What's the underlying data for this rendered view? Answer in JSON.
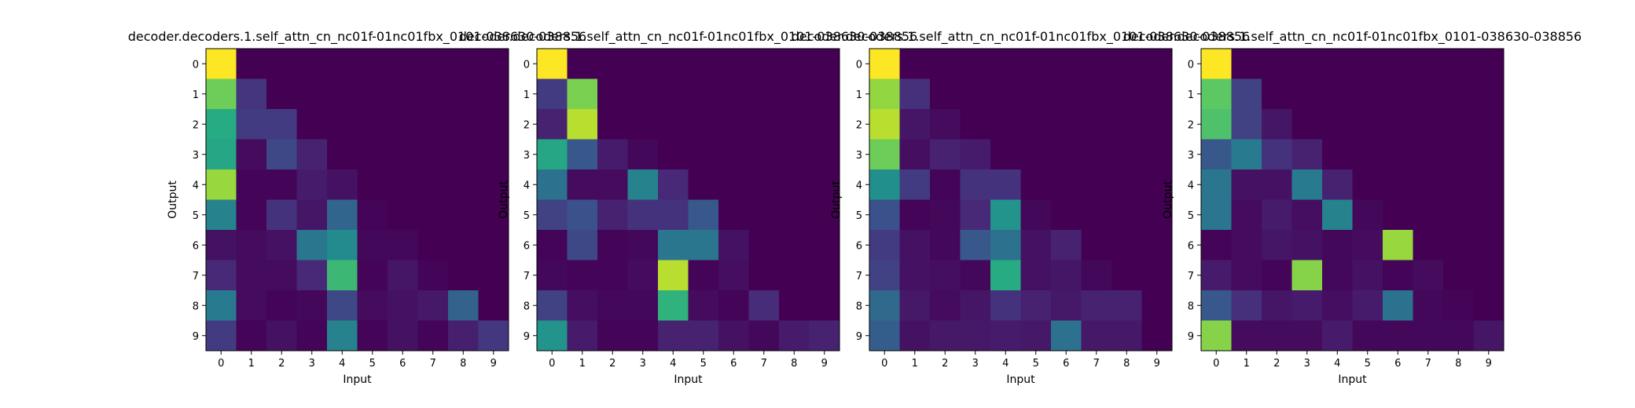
{
  "chart_data": [
    {
      "type": "heatmap",
      "title": "decoder.decoders.1.self_attn_cn_nc01f-01nc01fbx_0101-038630-038856",
      "xlabel": "Input",
      "ylabel": "Output",
      "x_ticks": [
        "0",
        "1",
        "2",
        "3",
        "4",
        "5",
        "6",
        "7",
        "8",
        "9"
      ],
      "y_ticks": [
        "0",
        "1",
        "2",
        "3",
        "4",
        "5",
        "6",
        "7",
        "8",
        "9"
      ],
      "colormap": "viridis",
      "vmin": 0.0,
      "vmax": 1.0,
      "values": [
        [
          1.0,
          0.0,
          0.0,
          0.0,
          0.0,
          0.0,
          0.0,
          0.0,
          0.0,
          0.0
        ],
        [
          0.78,
          0.16,
          0.0,
          0.0,
          0.0,
          0.0,
          0.0,
          0.0,
          0.0,
          0.0
        ],
        [
          0.62,
          0.18,
          0.18,
          0.0,
          0.0,
          0.0,
          0.0,
          0.0,
          0.0,
          0.0
        ],
        [
          0.6,
          0.03,
          0.22,
          0.1,
          0.0,
          0.0,
          0.0,
          0.0,
          0.0,
          0.0
        ],
        [
          0.85,
          0.01,
          0.01,
          0.08,
          0.05,
          0.0,
          0.0,
          0.0,
          0.0,
          0.0
        ],
        [
          0.45,
          0.01,
          0.15,
          0.06,
          0.33,
          0.01,
          0.0,
          0.0,
          0.0,
          0.0
        ],
        [
          0.05,
          0.03,
          0.05,
          0.4,
          0.48,
          0.02,
          0.02,
          0.0,
          0.0,
          0.0
        ],
        [
          0.12,
          0.03,
          0.03,
          0.12,
          0.68,
          0.01,
          0.06,
          0.01,
          0.0,
          0.0
        ],
        [
          0.42,
          0.03,
          0.01,
          0.02,
          0.22,
          0.03,
          0.05,
          0.07,
          0.32,
          0.0
        ],
        [
          0.18,
          0.01,
          0.05,
          0.01,
          0.45,
          0.01,
          0.05,
          0.01,
          0.09,
          0.17
        ]
      ]
    },
    {
      "type": "heatmap",
      "title": "decoder.decoders.1.self_attn_cn_nc01f-01nc01fbx_0101-038630-038856",
      "xlabel": "Input",
      "ylabel": "Output",
      "x_ticks": [
        "0",
        "1",
        "2",
        "3",
        "4",
        "5",
        "6",
        "7",
        "8",
        "9"
      ],
      "y_ticks": [
        "0",
        "1",
        "2",
        "3",
        "4",
        "5",
        "6",
        "7",
        "8",
        "9"
      ],
      "colormap": "viridis",
      "vmin": 0.0,
      "vmax": 1.0,
      "values": [
        [
          1.0,
          0.0,
          0.0,
          0.0,
          0.0,
          0.0,
          0.0,
          0.0,
          0.0,
          0.0
        ],
        [
          0.18,
          0.8,
          0.0,
          0.0,
          0.0,
          0.0,
          0.0,
          0.0,
          0.0,
          0.0
        ],
        [
          0.1,
          0.9,
          0.0,
          0.0,
          0.0,
          0.0,
          0.0,
          0.0,
          0.0,
          0.0
        ],
        [
          0.6,
          0.28,
          0.08,
          0.02,
          0.0,
          0.0,
          0.0,
          0.0,
          0.0,
          0.0
        ],
        [
          0.38,
          0.03,
          0.03,
          0.45,
          0.12,
          0.0,
          0.0,
          0.0,
          0.0,
          0.0
        ],
        [
          0.2,
          0.25,
          0.1,
          0.15,
          0.15,
          0.28,
          0.0,
          0.0,
          0.0,
          0.0
        ],
        [
          0.01,
          0.22,
          0.01,
          0.02,
          0.4,
          0.4,
          0.05,
          0.0,
          0.0,
          0.0
        ],
        [
          0.02,
          0.01,
          0.01,
          0.03,
          0.9,
          0.01,
          0.04,
          0.0,
          0.0,
          0.0
        ],
        [
          0.2,
          0.04,
          0.02,
          0.02,
          0.65,
          0.03,
          0.01,
          0.13,
          0.0,
          0.0
        ],
        [
          0.52,
          0.08,
          0.01,
          0.01,
          0.1,
          0.1,
          0.05,
          0.02,
          0.08,
          0.1
        ]
      ]
    },
    {
      "type": "heatmap",
      "title": "decoder.decoders.1.self_attn_cn_nc01f-01nc01fbx_0101-038630-038856",
      "xlabel": "Input",
      "ylabel": "Output",
      "x_ticks": [
        "0",
        "1",
        "2",
        "3",
        "4",
        "5",
        "6",
        "7",
        "8",
        "9"
      ],
      "y_ticks": [
        "0",
        "1",
        "2",
        "3",
        "4",
        "5",
        "6",
        "7",
        "8",
        "9"
      ],
      "colormap": "viridis",
      "vmin": 0.0,
      "vmax": 1.0,
      "values": [
        [
          1.0,
          0.0,
          0.0,
          0.0,
          0.0,
          0.0,
          0.0,
          0.0,
          0.0,
          0.0
        ],
        [
          0.84,
          0.14,
          0.0,
          0.0,
          0.0,
          0.0,
          0.0,
          0.0,
          0.0,
          0.0
        ],
        [
          0.9,
          0.06,
          0.03,
          0.0,
          0.0,
          0.0,
          0.0,
          0.0,
          0.0,
          0.0
        ],
        [
          0.78,
          0.04,
          0.1,
          0.08,
          0.0,
          0.0,
          0.0,
          0.0,
          0.0,
          0.0
        ],
        [
          0.5,
          0.18,
          0.01,
          0.15,
          0.15,
          0.0,
          0.0,
          0.0,
          0.0,
          0.0
        ],
        [
          0.25,
          0.01,
          0.02,
          0.12,
          0.52,
          0.02,
          0.0,
          0.0,
          0.0,
          0.0
        ],
        [
          0.18,
          0.05,
          0.02,
          0.28,
          0.38,
          0.05,
          0.1,
          0.0,
          0.0,
          0.0
        ],
        [
          0.2,
          0.05,
          0.04,
          0.02,
          0.62,
          0.05,
          0.06,
          0.02,
          0.0,
          0.0
        ],
        [
          0.35,
          0.07,
          0.03,
          0.06,
          0.15,
          0.1,
          0.07,
          0.1,
          0.1,
          0.0
        ],
        [
          0.3,
          0.05,
          0.07,
          0.07,
          0.08,
          0.07,
          0.38,
          0.07,
          0.07,
          0.0
        ]
      ]
    },
    {
      "type": "heatmap",
      "title": "decoder.decoders.1.self_attn_cn_nc01f-01nc01fbx_0101-038630-038856",
      "xlabel": "Input",
      "ylabel": "Output",
      "x_ticks": [
        "0",
        "1",
        "2",
        "3",
        "4",
        "5",
        "6",
        "7",
        "8",
        "9"
      ],
      "y_ticks": [
        "0",
        "1",
        "2",
        "3",
        "4",
        "5",
        "6",
        "7",
        "8",
        "9"
      ],
      "colormap": "viridis",
      "vmin": 0.0,
      "vmax": 1.0,
      "values": [
        [
          1.0,
          0.0,
          0.0,
          0.0,
          0.0,
          0.0,
          0.0,
          0.0,
          0.0,
          0.0
        ],
        [
          0.75,
          0.2,
          0.0,
          0.0,
          0.0,
          0.0,
          0.0,
          0.0,
          0.0,
          0.0
        ],
        [
          0.72,
          0.2,
          0.06,
          0.0,
          0.0,
          0.0,
          0.0,
          0.0,
          0.0,
          0.0
        ],
        [
          0.28,
          0.42,
          0.15,
          0.1,
          0.0,
          0.0,
          0.0,
          0.0,
          0.0,
          0.0
        ],
        [
          0.4,
          0.05,
          0.05,
          0.42,
          0.1,
          0.0,
          0.0,
          0.0,
          0.0,
          0.0
        ],
        [
          0.4,
          0.03,
          0.08,
          0.04,
          0.45,
          0.02,
          0.0,
          0.0,
          0.0,
          0.0
        ],
        [
          0.01,
          0.03,
          0.06,
          0.05,
          0.02,
          0.03,
          0.85,
          0.0,
          0.0,
          0.0
        ],
        [
          0.08,
          0.03,
          0.01,
          0.82,
          0.02,
          0.05,
          0.01,
          0.03,
          0.0,
          0.0
        ],
        [
          0.28,
          0.14,
          0.06,
          0.08,
          0.04,
          0.08,
          0.38,
          0.02,
          0.01,
          0.0
        ],
        [
          0.82,
          0.03,
          0.03,
          0.03,
          0.08,
          0.02,
          0.02,
          0.02,
          0.02,
          0.06
        ]
      ]
    }
  ]
}
